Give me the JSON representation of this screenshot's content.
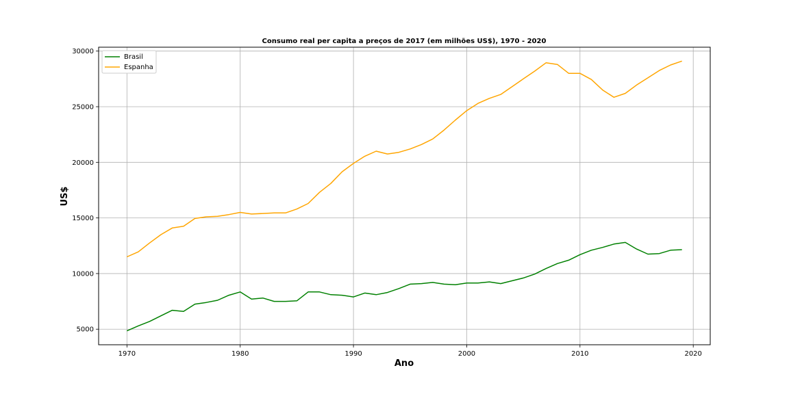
{
  "chart_data": {
    "type": "line",
    "title": "Consumo real per capita a preços de 2017 (em milhões US$), 1970 - 2020",
    "xlabel": "Ano",
    "ylabel": "US$",
    "xlim": [
      1967.5,
      2021.5
    ],
    "ylim": [
      3600,
      30350
    ],
    "xticks": [
      1970,
      1980,
      1990,
      2000,
      2010,
      2020
    ],
    "yticks": [
      5000,
      10000,
      15000,
      20000,
      25000,
      30000
    ],
    "grid": true,
    "legend_position": "upper-left",
    "x": [
      1970,
      1971,
      1972,
      1973,
      1974,
      1975,
      1976,
      1977,
      1978,
      1979,
      1980,
      1981,
      1982,
      1983,
      1984,
      1985,
      1986,
      1987,
      1988,
      1989,
      1990,
      1991,
      1992,
      1993,
      1994,
      1995,
      1996,
      1997,
      1998,
      1999,
      2000,
      2001,
      2002,
      2003,
      2004,
      2005,
      2006,
      2007,
      2008,
      2009,
      2010,
      2011,
      2012,
      2013,
      2014,
      2015,
      2016,
      2017,
      2018,
      2019
    ],
    "series": [
      {
        "name": "Brasil",
        "color": "#008000",
        "values": [
          4850,
          5300,
          5700,
          6200,
          6700,
          6600,
          7250,
          7400,
          7600,
          8050,
          8350,
          7700,
          7800,
          7500,
          7500,
          7550,
          8350,
          8350,
          8100,
          8050,
          7900,
          8250,
          8100,
          8300,
          8650,
          9050,
          9100,
          9200,
          9050,
          9000,
          9150,
          9150,
          9250,
          9100,
          9350,
          9600,
          9950,
          10450,
          10900,
          11200,
          11700,
          12100,
          12350,
          12650,
          12800,
          12200,
          11750,
          11800,
          12100,
          12150
        ]
      },
      {
        "name": "Espanha",
        "color": "#ffa500",
        "values": [
          11500,
          11950,
          12750,
          13500,
          14100,
          14250,
          14950,
          15100,
          15150,
          15300,
          15500,
          15350,
          15400,
          15450,
          15450,
          15800,
          16300,
          17300,
          18100,
          19150,
          19900,
          20550,
          21000,
          20750,
          20900,
          21200,
          21600,
          22100,
          22900,
          23800,
          24650,
          25300,
          25750,
          26100,
          26800,
          27500,
          28200,
          28950,
          28800,
          28000,
          28000,
          27450,
          26500,
          25850,
          26200,
          26950,
          27600,
          28250,
          28750,
          29100
        ]
      }
    ]
  }
}
